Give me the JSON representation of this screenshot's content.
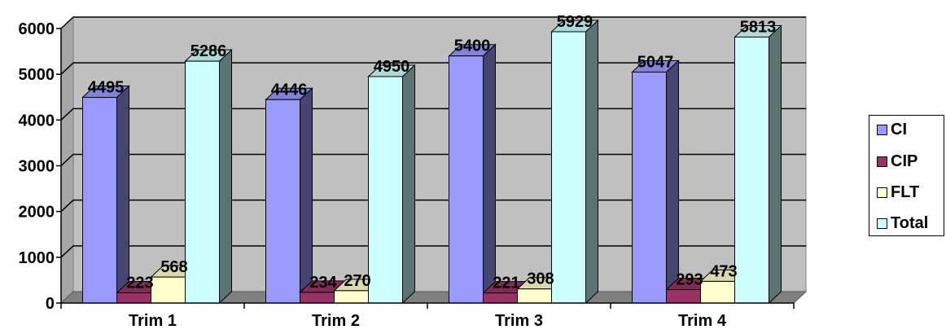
{
  "chart_data": {
    "type": "bar",
    "categories": [
      "Trim 1",
      "Trim 2",
      "Trim 3",
      "Trim 4"
    ],
    "series": [
      {
        "name": "CI",
        "values": [
          4495,
          4446,
          5400,
          5047
        ],
        "color": "#9999FF"
      },
      {
        "name": "CIP",
        "values": [
          223,
          234,
          221,
          293
        ],
        "color": "#993366"
      },
      {
        "name": "FLT",
        "values": [
          568,
          270,
          308,
          473
        ],
        "color": "#FFFFCC"
      },
      {
        "name": "Total",
        "values": [
          5286,
          4950,
          5929,
          5813
        ],
        "color": "#CCFFFF"
      }
    ],
    "ylim": [
      0,
      6000
    ],
    "yticks": [
      0,
      1000,
      2000,
      3000,
      4000,
      5000,
      6000
    ],
    "grid": true,
    "three_d": true,
    "plot_background": "#C0C0C0",
    "legend_position": "right",
    "data_labels": true
  }
}
